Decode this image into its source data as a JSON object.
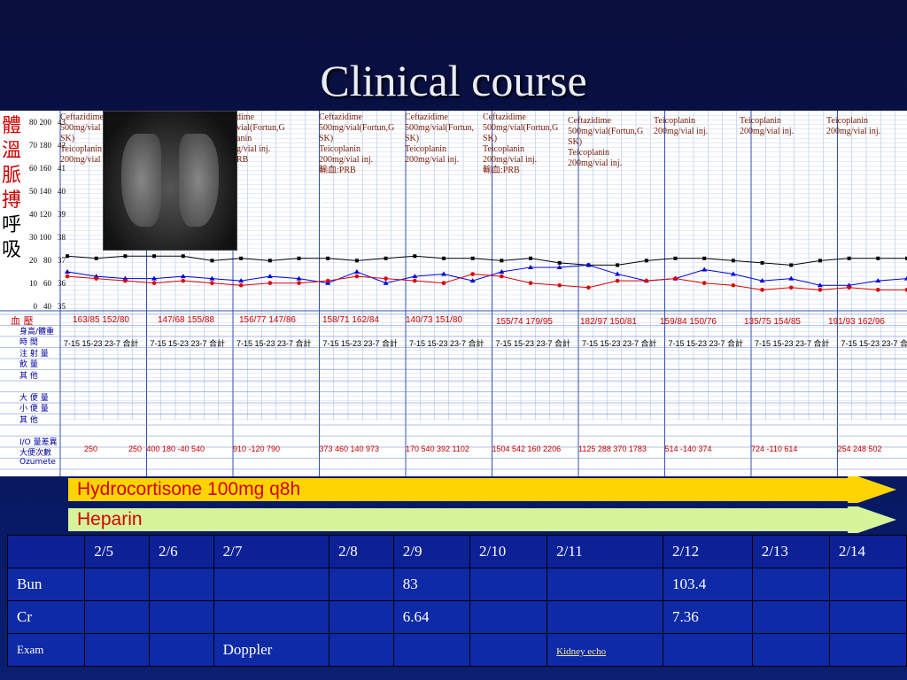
{
  "slide": {
    "title": "Clinical course"
  },
  "vitals_labels": [
    "體",
    "溫",
    "脈",
    "搏",
    "呼",
    "吸"
  ],
  "scale_rows": [
    {
      "a": "80",
      "b": "200",
      "c": "43"
    },
    {
      "a": "70",
      "b": "180",
      "c": "42"
    },
    {
      "a": "60",
      "b": "160",
      "c": "41"
    },
    {
      "a": "50",
      "b": "140",
      "c": "40"
    },
    {
      "a": "40",
      "b": "120",
      "c": "39"
    },
    {
      "a": "30",
      "b": "100",
      "c": "38"
    },
    {
      "a": "20",
      "b": "80",
      "c": "37"
    },
    {
      "a": "10",
      "b": "60",
      "c": "36"
    },
    {
      "a": "0",
      "b": "40",
      "c": "35"
    }
  ],
  "medications": [
    [
      "Ceftazidime",
      "500mg/vial",
      "SK)",
      "Teicoplanin",
      "200mg/vial"
    ],
    [
      "dime",
      "vial(Fortun,G",
      "",
      "anin",
      "g/vial inj.",
      "RB"
    ],
    [
      "Ceftazidime",
      "500mg/vial(Fortun,G",
      "SK)",
      "Teicoplanin",
      "200mg/vial inj.",
      "輸血:PRB"
    ],
    [
      "Ceftazidime",
      "500mg/vial(Fortun,",
      "SK)",
      "Teicoplanin",
      "200mg/vial inj."
    ],
    [
      "Ceftazidime",
      "500mg/vial(Fortun,G",
      "SK)",
      "Teicoplanin",
      "200mg/vial inj.",
      "輸血:PRB"
    ],
    [
      "Ceftazidime",
      "500mg/vial(Fortun,G",
      "SK)",
      "Teicoplanin",
      "200mg/vial inj."
    ],
    [
      "Teicoplanin",
      "200mg/vial inj."
    ],
    [
      "Teicoplanin",
      "200mg/vial inj."
    ],
    [
      "Teicoplanin",
      "200mg/vial inj."
    ]
  ],
  "row_labels": [
    "血 壓",
    "身高/體重",
    "時 間",
    "注 射 量",
    "飲 量",
    "其 他",
    "",
    "大 便 量",
    "小 便 量",
    "其 他",
    "",
    "I/O 量差異",
    "大便次數",
    "Ozumete"
  ],
  "blood_pressure": [
    "163/85 152/80",
    "147/68 155/88",
    "156/77 147/86",
    "158/71 162/84",
    "140/73 151/80",
    "155/74 179/95",
    "182/97 150/81",
    "159/84 150/76",
    "135/75 154/85",
    "191/93 162/96"
  ],
  "shift_header": "7-15  15-23  23-7  合計",
  "io_rows": [
    [
      "250",
      "250",
      "400 180 -40 540",
      "910  -120 790",
      "373 460 140 973",
      "170 540 392 1102",
      "1504 542 160 2206",
      "1125 288 370 1783",
      "514  -140 374",
      "724  -110 614",
      "254  248 502"
    ]
  ],
  "timeline": [
    {
      "label": "Hydrocortisone 100mg q8h",
      "color": "#ffd400"
    },
    {
      "label": "Heparin",
      "color": "#d6f59a"
    }
  ],
  "lab_table": {
    "headers": [
      "",
      "2/5",
      "2/6",
      "2/7",
      "2/8",
      "2/9",
      "2/10",
      "2/11",
      "2/12",
      "2/13",
      "2/14"
    ],
    "rows": [
      {
        "label": "Bun",
        "values": [
          "",
          "",
          "",
          "",
          "83",
          "",
          "",
          "103.4",
          "",
          ""
        ]
      },
      {
        "label": "Cr",
        "values": [
          "",
          "",
          "",
          "",
          "6.64",
          "",
          "",
          "7.36",
          "",
          ""
        ]
      },
      {
        "label": "Exam",
        "values": [
          "",
          "",
          "Doppler",
          "",
          "",
          "",
          "Kidney echo",
          "",
          "",
          ""
        ]
      }
    ]
  },
  "chart_data": {
    "type": "line",
    "x": [
      1,
      2,
      3,
      4,
      5,
      6,
      7,
      8,
      9,
      10,
      11,
      12,
      13,
      14,
      15,
      16,
      17,
      18,
      19,
      20,
      21,
      22,
      23,
      24,
      25,
      26,
      27,
      28,
      29,
      30
    ],
    "series": [
      {
        "values": [
          37.0,
          36.9,
          37.0,
          37.0,
          37.0,
          36.8,
          36.9,
          36.8,
          36.9,
          36.9,
          36.8,
          36.9,
          37.0,
          36.9,
          36.9,
          36.8,
          36.9,
          36.7,
          36.6,
          36.6,
          36.8,
          36.9,
          36.9,
          36.8,
          36.7,
          36.6,
          36.8,
          36.9,
          36.9,
          36.9
        ],
        "color": "#000000"
      },
      {
        "values": [
          36.3,
          36.1,
          36.0,
          36.0,
          36.1,
          36.0,
          35.9,
          36.1,
          36.0,
          35.8,
          36.3,
          35.8,
          36.1,
          36.2,
          35.9,
          36.3,
          36.5,
          36.5,
          36.6,
          36.2,
          35.9,
          36.0,
          36.4,
          36.2,
          35.9,
          36.0,
          35.7,
          35.7,
          35.9,
          36.0
        ],
        "color": "#0000dd"
      },
      {
        "values": [
          36.1,
          36.0,
          35.9,
          35.8,
          35.9,
          35.8,
          35.7,
          35.8,
          35.8,
          35.9,
          36.1,
          36.0,
          35.9,
          35.8,
          36.2,
          36.1,
          35.8,
          35.7,
          35.6,
          35.9,
          35.9,
          36.0,
          35.8,
          35.7,
          35.5,
          35.6,
          35.5,
          35.6,
          35.5,
          35.5
        ],
        "color": "#dd0000"
      }
    ],
    "ylim": [
      35,
      43
    ]
  }
}
